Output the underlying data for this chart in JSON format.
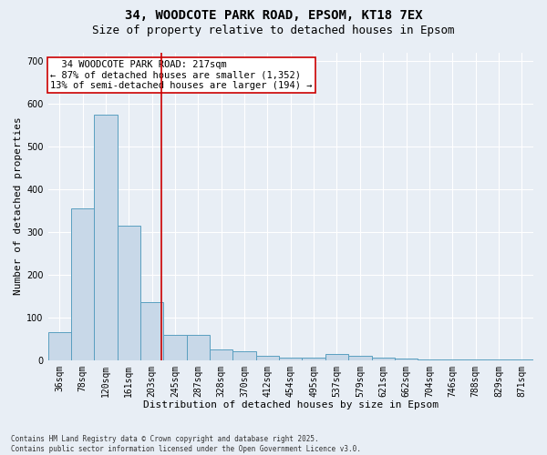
{
  "title1": "34, WOODCOTE PARK ROAD, EPSOM, KT18 7EX",
  "title2": "Size of property relative to detached houses in Epsom",
  "xlabel": "Distribution of detached houses by size in Epsom",
  "ylabel": "Number of detached properties",
  "bins": [
    "36sqm",
    "78sqm",
    "120sqm",
    "161sqm",
    "203sqm",
    "245sqm",
    "287sqm",
    "328sqm",
    "370sqm",
    "412sqm",
    "454sqm",
    "495sqm",
    "537sqm",
    "579sqm",
    "621sqm",
    "662sqm",
    "704sqm",
    "746sqm",
    "788sqm",
    "829sqm",
    "871sqm"
  ],
  "values": [
    65,
    355,
    575,
    315,
    135,
    60,
    60,
    25,
    20,
    10,
    5,
    5,
    15,
    10,
    5,
    3,
    2,
    2,
    2,
    1,
    1
  ],
  "bar_color": "#c8d8e8",
  "bar_edge_color": "#5a9fc0",
  "bar_linewidth": 0.7,
  "vline_x_index": 4.42,
  "vline_color": "#cc0000",
  "annotation_text": "  34 WOODCOTE PARK ROAD: 217sqm\n← 87% of detached houses are smaller (1,352)\n13% of semi-detached houses are larger (194) →",
  "annotation_box_color": "#ffffff",
  "annotation_box_edgecolor": "#cc0000",
  "ylim": [
    0,
    720
  ],
  "yticks": [
    0,
    100,
    200,
    300,
    400,
    500,
    600,
    700
  ],
  "background_color": "#e8eef5",
  "footer_text": "Contains HM Land Registry data © Crown copyright and database right 2025.\nContains public sector information licensed under the Open Government Licence v3.0.",
  "title_fontsize": 10,
  "subtitle_fontsize": 9,
  "axis_label_fontsize": 8,
  "tick_fontsize": 7,
  "annotation_fontsize": 7.5,
  "footer_fontsize": 5.5
}
